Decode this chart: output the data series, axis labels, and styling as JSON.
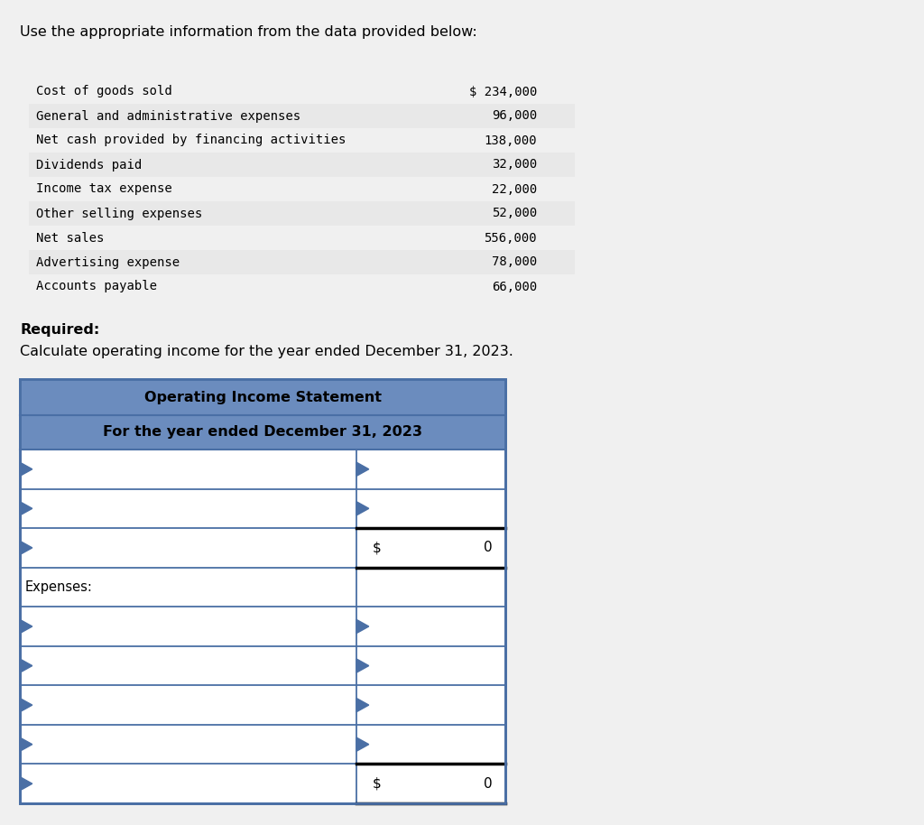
{
  "bg_color": "#f0f0f0",
  "white": "#ffffff",
  "title_line": "Use the appropriate information from the data provided below:",
  "data_items": [
    [
      "Cost of goods sold",
      "$ 234,000"
    ],
    [
      "General and administrative expenses",
      "96,000"
    ],
    [
      "Net cash provided by financing activities",
      "138,000"
    ],
    [
      "Dividends paid",
      "32,000"
    ],
    [
      "Income tax expense",
      "22,000"
    ],
    [
      "Other selling expenses",
      "52,000"
    ],
    [
      "Net sales",
      "556,000"
    ],
    [
      "Advertising expense",
      "78,000"
    ],
    [
      "Accounts payable",
      "66,000"
    ]
  ],
  "shaded_rows": [
    1,
    3,
    5,
    7
  ],
  "shade_color": "#e8e8e8",
  "required_bold": "Required:",
  "required_text": "Calculate operating income for the year ended December 31, 2023.",
  "table_title1": "Operating Income Statement",
  "table_title2": "For the year ended December 31, 2023",
  "header_color": "#6b8cbe",
  "border_color": "#4a6fa5",
  "monospace_font": "DejaVu Sans Mono",
  "sans_font": "DejaVu Sans"
}
